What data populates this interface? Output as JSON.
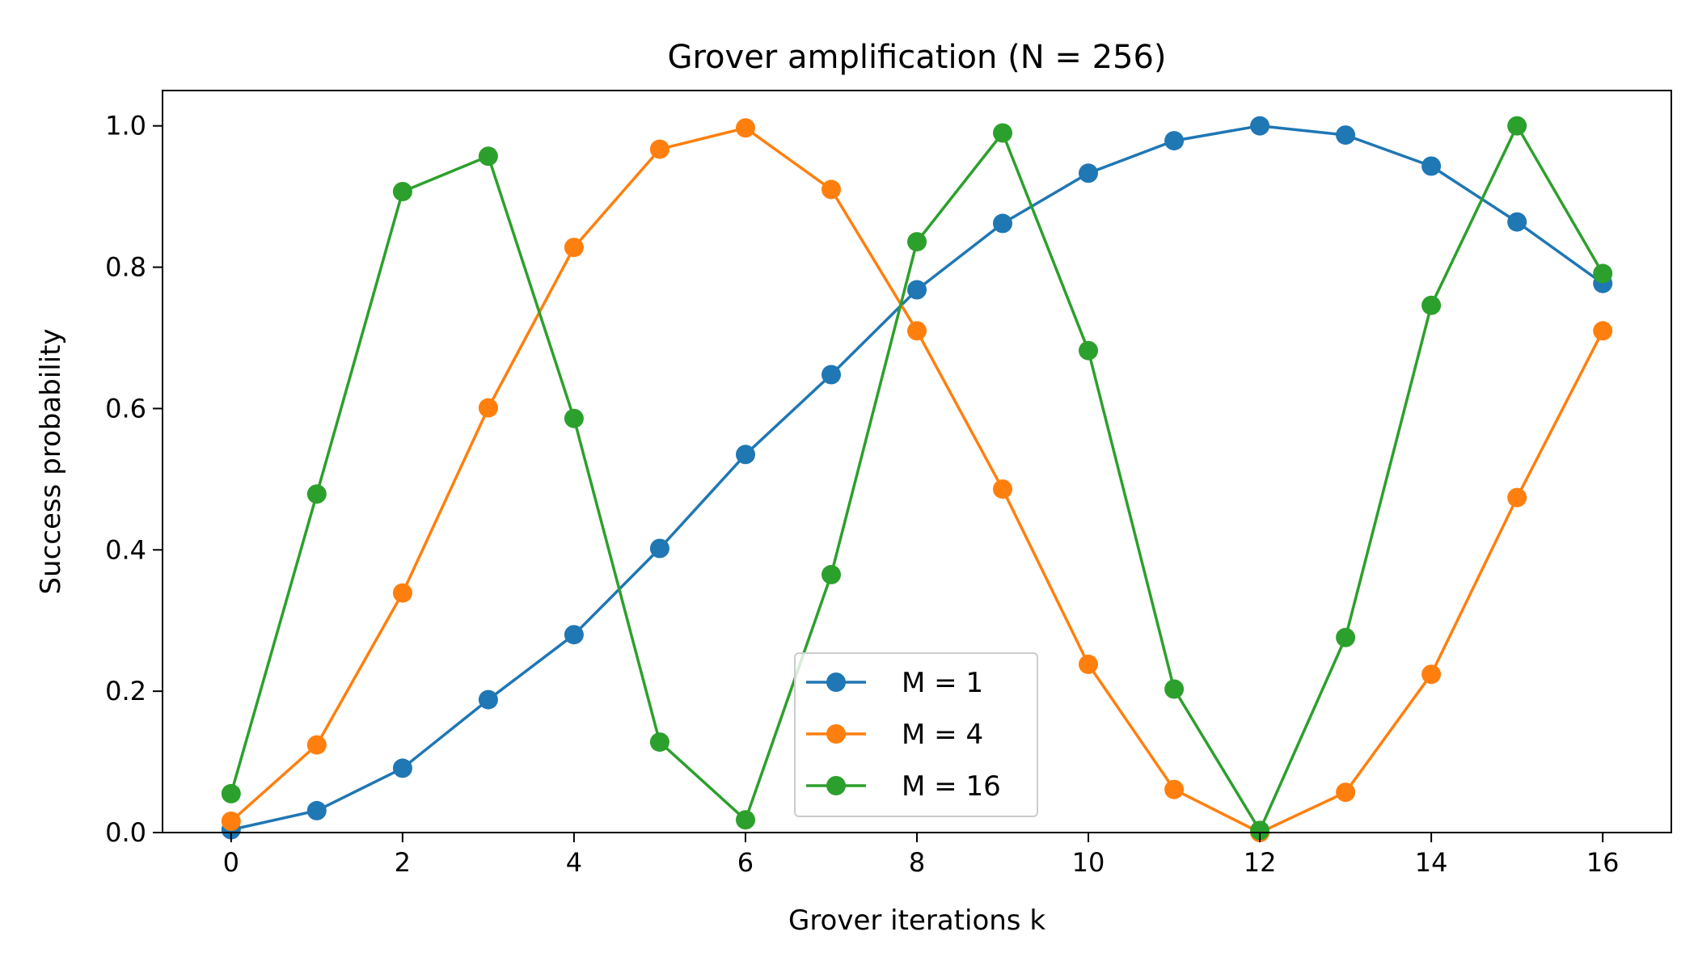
{
  "chart_data": {
    "type": "line",
    "title": "Grover amplification (N = 256)",
    "xlabel": "Grover iterations k",
    "ylabel": "Success probability",
    "xlim": [
      -0.8,
      16.8
    ],
    "ylim": [
      0.0,
      1.05
    ],
    "xticks": [
      0,
      2,
      4,
      6,
      8,
      10,
      12,
      14,
      16
    ],
    "xtick_labels": [
      "0",
      "2",
      "4",
      "6",
      "8",
      "10",
      "12",
      "14",
      "16"
    ],
    "yticks": [
      0.0,
      0.2,
      0.4,
      0.6,
      0.8,
      1.0
    ],
    "ytick_labels": [
      "0.0",
      "0.2",
      "0.4",
      "0.6",
      "0.8",
      "1.0"
    ],
    "grid": false,
    "legend_position": "lower-center",
    "x": [
      0,
      1,
      2,
      3,
      4,
      5,
      6,
      7,
      8,
      9,
      10,
      11,
      12,
      13,
      14,
      15,
      16
    ],
    "series": [
      {
        "name": "M = 1",
        "color": "#1f77b4",
        "marker": "circle",
        "values": [
          0.004,
          0.031,
          0.091,
          0.188,
          0.28,
          0.402,
          0.535,
          0.648,
          0.768,
          0.862,
          0.933,
          0.979,
          1.0,
          0.987,
          0.943,
          0.864,
          0.777
        ]
      },
      {
        "name": "M = 4",
        "color": "#ff7f0e",
        "marker": "circle",
        "values": [
          0.016,
          0.124,
          0.339,
          0.601,
          0.828,
          0.967,
          0.997,
          0.91,
          0.71,
          0.486,
          0.238,
          0.061,
          0.0,
          0.057,
          0.224,
          0.474,
          0.71
        ]
      },
      {
        "name": "M = 16",
        "color": "#2ca02c",
        "marker": "circle",
        "values": [
          0.055,
          0.479,
          0.907,
          0.957,
          0.586,
          0.128,
          0.018,
          0.365,
          0.836,
          0.99,
          0.682,
          0.203,
          0.003,
          0.276,
          0.746,
          1.0,
          0.791
        ]
      }
    ]
  }
}
